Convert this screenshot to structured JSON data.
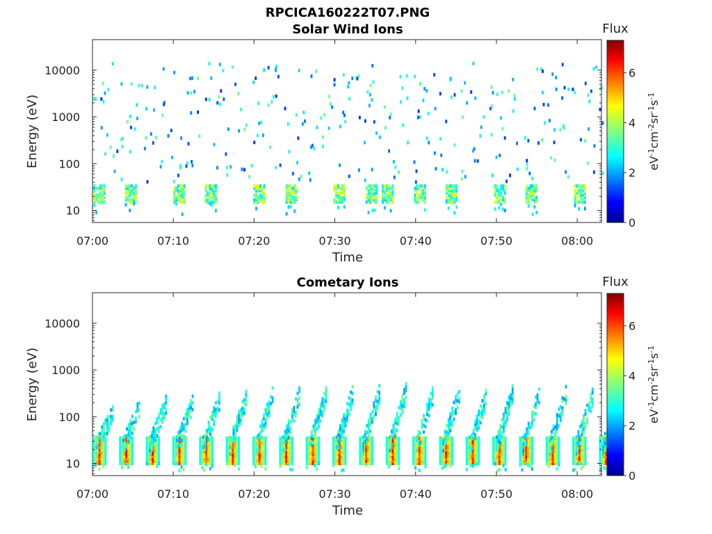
{
  "figure_title": "RPCICA160222T07.PNG",
  "chart_data": [
    {
      "type": "heatmap",
      "title": "Solar Wind Ions",
      "xlabel": "Time",
      "ylabel": "Energy (eV)",
      "x_ticks": [
        "07:00",
        "07:10",
        "07:20",
        "07:30",
        "07:40",
        "07:50",
        "08:00"
      ],
      "y_scale": "log",
      "y_ticks": [
        "10",
        "100",
        "1000",
        "10000"
      ],
      "xlim": [
        "07:00",
        "08:03"
      ],
      "ylim_eV": [
        5.5,
        45000
      ],
      "colorbar": {
        "label": "Flux",
        "units": "eV⁻¹cm⁻²sr⁻¹s⁻¹",
        "ticks": [
          "0",
          "2",
          "4",
          "6"
        ],
        "range": [
          0,
          7.3
        ],
        "colormap": "jet"
      },
      "cycle_starts_min": [
        0.1,
        4.0,
        10.0,
        13.9,
        19.9,
        23.9,
        29.8,
        33.8,
        35.8,
        39.8,
        43.7,
        49.7,
        53.6,
        59.6
      ],
      "cycle_starts_scatter_min": [
        0.0,
        2.0,
        4.0,
        6.0,
        8.0,
        10.0,
        12.0,
        14.0,
        16.0,
        18.0,
        20.0,
        22.0,
        24.0,
        26.0,
        28.0,
        30.0,
        32.0,
        34.0,
        36.0,
        38.0,
        40.0,
        42.0,
        44.0,
        46.0,
        48.0,
        50.0,
        52.0,
        54.0,
        56.0,
        58.0,
        60.0,
        62.0
      ],
      "low_band_eV": [
        15,
        35
      ],
      "low_band_peak_flux": 4.6,
      "background_flux": [
        2.0,
        3.0
      ]
    },
    {
      "type": "heatmap",
      "title": "Cometary Ions",
      "xlabel": "Time",
      "ylabel": "Energy (eV)",
      "x_ticks": [
        "07:00",
        "07:10",
        "07:20",
        "07:30",
        "07:40",
        "07:50",
        "08:00"
      ],
      "y_scale": "log",
      "y_ticks": [
        "10",
        "100",
        "1000",
        "10000"
      ],
      "xlim": [
        "07:00",
        "08:03"
      ],
      "ylim_eV": [
        5.5,
        45000
      ],
      "colorbar": {
        "label": "Flux",
        "units": "eV⁻¹cm⁻²sr⁻¹s⁻¹",
        "ticks": [
          "0",
          "2",
          "4",
          "6"
        ],
        "range": [
          0,
          7.3
        ],
        "colormap": "jet"
      },
      "sweep_period_min": 3.3,
      "sweep_starts_min": [
        0.0,
        3.3,
        6.6,
        9.9,
        13.2,
        16.5,
        19.8,
        23.1,
        26.4,
        29.7,
        33.0,
        36.3,
        39.6,
        42.9,
        46.2,
        49.5,
        52.8,
        56.1,
        59.4,
        62.7
      ],
      "core_band_eV": [
        10,
        35
      ],
      "core_peak_flux": 6.5,
      "sweep_max_eV": [
        180,
        250,
        300,
        300,
        350,
        380,
        450,
        450,
        450,
        480,
        500,
        550,
        450,
        520,
        400,
        500,
        500,
        480,
        420,
        200
      ]
    }
  ]
}
